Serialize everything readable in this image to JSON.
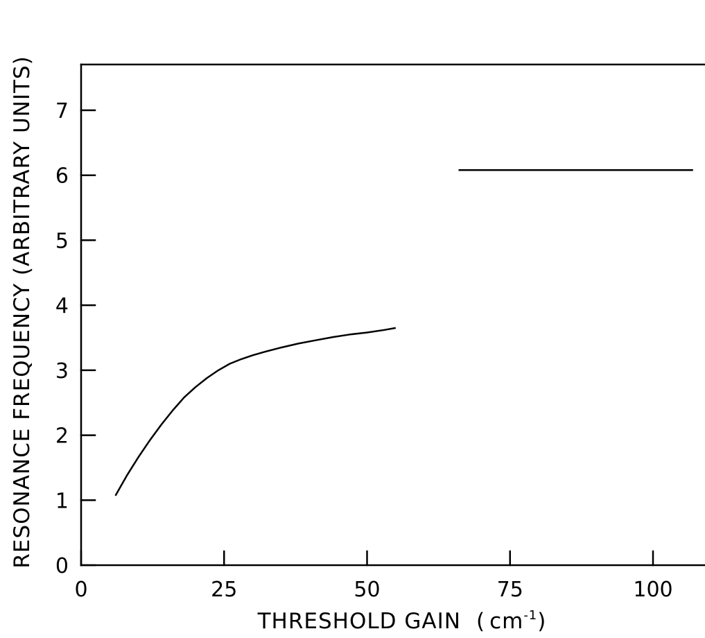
{
  "chart_data": {
    "type": "line",
    "title": "",
    "xlabel": "THRESHOLD GAIN",
    "xlabel_unit_base": "cm",
    "xlabel_unit_exp": "-1",
    "ylabel": "RESONANCE FREQUENCY (ARBITRARY UNITS)",
    "xlim": [
      0,
      108
    ],
    "ylim": [
      0,
      7.7
    ],
    "x_ticks": [
      0,
      25,
      50,
      75,
      100
    ],
    "x_tick_labels": [
      "0",
      "25",
      "50",
      "75",
      "100"
    ],
    "y_ticks": [
      0,
      1,
      2,
      3,
      4,
      5,
      6,
      7
    ],
    "y_tick_labels": [
      "0",
      "1",
      "2",
      "3",
      "4",
      "5",
      "6",
      "7"
    ],
    "grid": false,
    "legend": "none",
    "line_color": "#000000",
    "series": [
      {
        "x": [
          6,
          8,
          10,
          12,
          14,
          16,
          18,
          20,
          22,
          24,
          26,
          28,
          30,
          32,
          35,
          38,
          41,
          44,
          47,
          50,
          53,
          55
        ],
        "y": [
          1.07,
          1.38,
          1.66,
          1.92,
          2.16,
          2.38,
          2.58,
          2.74,
          2.88,
          3.0,
          3.1,
          3.17,
          3.23,
          3.28,
          3.35,
          3.41,
          3.46,
          3.51,
          3.55,
          3.58,
          3.62,
          3.65
        ]
      },
      {
        "x": [
          66,
          107
        ],
        "y": [
          6.08,
          6.08
        ]
      }
    ]
  }
}
